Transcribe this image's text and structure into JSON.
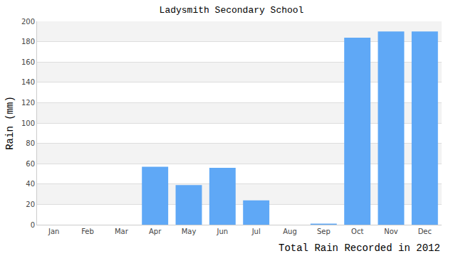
{
  "chart_data": {
    "type": "bar",
    "title": "Ladysmith Secondary School",
    "x_label": "Total Rain Recorded in 2012",
    "y_label": "Rain (mm)",
    "categories": [
      "Jan",
      "Feb",
      "Mar",
      "Apr",
      "May",
      "Jun",
      "Jul",
      "Aug",
      "Sep",
      "Oct",
      "Nov",
      "Dec"
    ],
    "values": [
      0,
      0,
      0,
      57,
      39,
      56,
      24,
      0,
      1,
      184,
      190,
      190
    ],
    "color": "#5fa8f6",
    "ylim": [
      0,
      200
    ],
    "yticks": [
      0,
      20,
      40,
      60,
      80,
      100,
      120,
      140,
      160,
      180,
      200
    ],
    "grid": true
  }
}
